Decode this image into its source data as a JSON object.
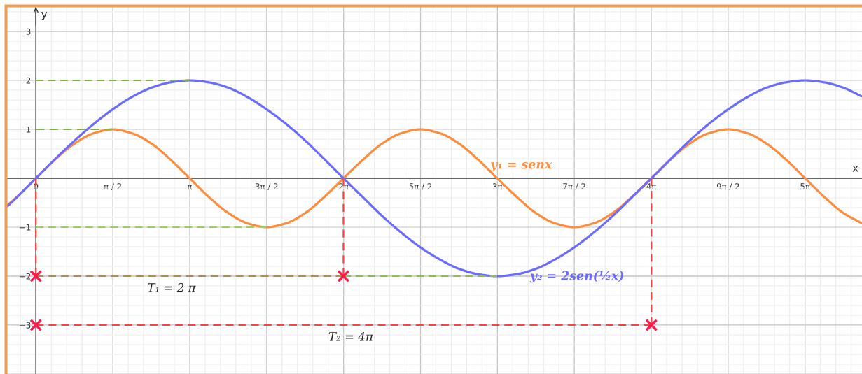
{
  "chart_data": {
    "type": "line",
    "line_style": "solid",
    "grid": true,
    "xlabel": "x",
    "ylabel": "y",
    "xlim": [
      -0.59,
      16.87
    ],
    "ylim": [
      -4,
      3.5
    ],
    "xticks": [
      0,
      {
        "value": 1.5708,
        "label": "π / 2"
      },
      {
        "value": 3.1416,
        "label": "π"
      },
      {
        "value": 4.7124,
        "label": "3π / 2"
      },
      {
        "value": 6.2832,
        "label": "2π"
      },
      {
        "value": 7.854,
        "label": "5π / 2"
      },
      {
        "value": 9.4248,
        "label": "3π"
      },
      {
        "value": 10.9956,
        "label": "7π / 2"
      },
      {
        "value": 12.5664,
        "label": "4π"
      },
      {
        "value": 14.1372,
        "label": "9π / 2"
      },
      {
        "value": 15.708,
        "label": "5π"
      }
    ],
    "yticks": [
      3,
      2,
      1,
      {
        "value": -1,
        "label": "−1"
      },
      {
        "value": -2,
        "label": "−2"
      },
      {
        "value": -3,
        "label": "−3"
      },
      {
        "value": -4,
        "label": null
      }
    ],
    "series": [
      {
        "line_style": "dashed",
        "color": "#7cb342",
        "x": [
          0,
          3.14
        ],
        "values": [
          2,
          2
        ]
      },
      {
        "line_style": "dashed",
        "color": "#7cb342",
        "x": [
          0,
          1.57
        ],
        "values": [
          1,
          1
        ]
      },
      {
        "line_style": "dashed",
        "color": "#9ccc65",
        "x": [
          0,
          4.71
        ],
        "values": [
          -1,
          -1
        ]
      },
      {
        "line_style": "dashed",
        "color": "#b08c52",
        "x": [
          0,
          6.28
        ],
        "values": [
          -2,
          -2
        ]
      },
      {
        "line_style": "dashed",
        "color": "#8fbc5a",
        "x": [
          6.28,
          9.42
        ],
        "values": [
          -2,
          -2
        ]
      },
      {
        "line_style": "dashed",
        "color": "#ff4040",
        "x": [
          0,
          12.57
        ],
        "values": [
          -3,
          -3
        ]
      },
      {
        "line_style": "dashed",
        "color": "#ff4040",
        "x": [
          0,
          0
        ],
        "values": [
          0,
          -2
        ]
      },
      {
        "line_style": "dashed",
        "color": "#ff4040",
        "x": [
          6.28,
          6.28
        ],
        "values": [
          0,
          -2
        ]
      },
      {
        "line_style": "dashed",
        "color": "#ff4040",
        "x": [
          12.57,
          12.57
        ],
        "values": [
          0,
          -3
        ]
      },
      {
        "color": "#ff8c3c",
        "x": [
          -0.58,
          -0.39,
          0,
          0.39,
          0.79,
          1.18,
          1.57,
          1.96,
          2.36,
          2.75,
          3.14,
          3.53,
          3.93,
          4.32,
          4.71,
          5.11,
          5.5,
          5.89,
          6.28,
          6.68,
          7.07,
          7.46,
          7.85,
          8.25,
          8.64,
          9.03,
          9.42,
          9.82,
          10.21,
          10.6,
          11,
          11.39,
          11.78,
          12.17,
          12.57,
          12.96,
          13.35,
          13.74,
          14.14,
          14.53,
          14.92,
          15.32,
          15.71,
          16.1,
          16.49,
          16.85
        ],
        "values": [
          -0.55,
          -0.38,
          0,
          0.38,
          0.71,
          0.92,
          1,
          0.92,
          0.71,
          0.38,
          0,
          -0.38,
          -0.71,
          -0.92,
          -1,
          -0.92,
          -0.71,
          -0.38,
          0,
          0.38,
          0.71,
          0.92,
          1,
          0.92,
          0.71,
          0.38,
          0,
          -0.38,
          -0.71,
          -0.92,
          -1,
          -0.92,
          -0.71,
          -0.38,
          0,
          0.38,
          0.71,
          0.92,
          1,
          0.92,
          0.71,
          0.38,
          0,
          -0.38,
          -0.71,
          -0.91
        ]
      },
      {
        "color": "#6b6bff",
        "x": [
          -0.58,
          -0.39,
          0,
          0.39,
          0.79,
          1.18,
          1.57,
          1.96,
          2.36,
          2.75,
          3.14,
          3.53,
          3.93,
          4.32,
          4.71,
          5.11,
          5.5,
          5.89,
          6.28,
          6.68,
          7.07,
          7.46,
          7.85,
          8.25,
          8.64,
          9.03,
          9.42,
          9.82,
          10.21,
          10.6,
          11,
          11.39,
          11.78,
          12.17,
          12.57,
          12.96,
          13.35,
          13.74,
          14.14,
          14.53,
          14.92,
          15.32,
          15.71,
          16.1,
          16.49,
          16.85
        ],
        "values": [
          -0.57,
          -0.39,
          0,
          0.39,
          0.77,
          1.11,
          1.41,
          1.66,
          1.85,
          1.96,
          2,
          1.96,
          1.85,
          1.66,
          1.41,
          1.11,
          0.77,
          0.39,
          0,
          -0.39,
          -0.77,
          -1.11,
          -1.41,
          -1.66,
          -1.85,
          -1.96,
          -2,
          -1.96,
          -1.85,
          -1.66,
          -1.41,
          -1.11,
          -0.77,
          -0.39,
          0,
          0.39,
          0.77,
          1.11,
          1.41,
          1.66,
          1.85,
          1.96,
          2,
          1.96,
          1.85,
          1.68
        ]
      },
      {
        "type": "scatter",
        "marker": "cross",
        "color": "#ff1a4d",
        "x": [
          0,
          6.28,
          0,
          12.57
        ],
        "values": [
          -2,
          -2,
          -3,
          -3
        ]
      }
    ],
    "annotations": [
      {
        "text": "y₁ = senx",
        "x": 9.28,
        "y": 0.14
      },
      {
        "text": "y₂ = 2sen(½x)",
        "x": 10.09,
        "y": -1.89
      },
      {
        "text": "T₁ = 2 π",
        "x": 2.77,
        "y": -2
      },
      {
        "text": "T₂ = 4π",
        "x": 6.43,
        "y": -3
      }
    ]
  }
}
